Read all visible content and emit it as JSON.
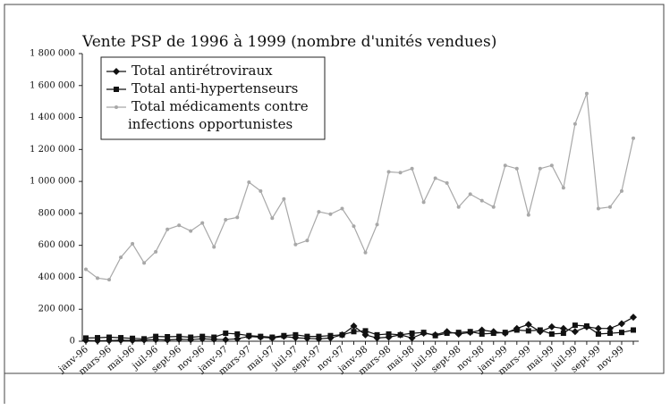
{
  "chart_data": {
    "type": "line",
    "title": "Vente PSP de 1996 à 1999 (nombre d'unités vendues)",
    "categories": [
      "janv-96",
      null,
      "mars-96",
      null,
      "mai-96",
      null,
      "juil-96",
      null,
      "sept-96",
      null,
      "nov-96",
      null,
      "janv-97",
      null,
      "mars-97",
      null,
      "mai-97",
      null,
      "juil-97",
      null,
      "sept-97",
      null,
      "nov-97",
      null,
      "janv-98",
      null,
      "mars-98",
      null,
      "mai-98",
      null,
      "juil-98",
      null,
      "sept-98",
      null,
      "nov-98",
      null,
      "janv-99",
      null,
      "mars-99",
      null,
      "mai-99",
      null,
      "juil-99",
      null,
      "sept-99",
      null,
      "nov-99",
      null
    ],
    "series": [
      {
        "name": "Total antirétroviraux",
        "color": "#111111",
        "marker": "diamond",
        "values": [
          5000,
          3000,
          4000,
          6000,
          5000,
          8000,
          10000,
          8000,
          12000,
          10000,
          15000,
          12000,
          10000,
          15000,
          30000,
          25000,
          20000,
          30000,
          22000,
          18000,
          15000,
          20000,
          40000,
          95000,
          40000,
          20000,
          25000,
          40000,
          20000,
          50000,
          40000,
          60000,
          45000,
          55000,
          70000,
          60000,
          50000,
          80000,
          105000,
          60000,
          90000,
          80000,
          60000,
          90000,
          80000,
          80000,
          110000,
          150000
        ]
      },
      {
        "name": "Total anti-hypertenseurs",
        "color": "#111111",
        "marker": "square",
        "values": [
          20000,
          22000,
          25000,
          22000,
          18000,
          15000,
          30000,
          28000,
          30000,
          25000,
          30000,
          25000,
          50000,
          45000,
          35000,
          30000,
          25000,
          35000,
          40000,
          30000,
          30000,
          35000,
          40000,
          60000,
          65000,
          40000,
          45000,
          40000,
          50000,
          55000,
          35000,
          50000,
          55000,
          60000,
          45000,
          50000,
          55000,
          70000,
          65000,
          70000,
          45000,
          50000,
          100000,
          95000,
          45000,
          50000,
          55000,
          70000
        ]
      },
      {
        "name": "Total médicaments contre infections opportunistes",
        "color": "#a8a8a8",
        "marker": "dot",
        "values": [
          450000,
          395000,
          385000,
          525000,
          610000,
          490000,
          560000,
          700000,
          725000,
          690000,
          740000,
          590000,
          760000,
          775000,
          995000,
          940000,
          770000,
          890000,
          605000,
          630000,
          810000,
          795000,
          830000,
          720000,
          555000,
          730000,
          1060000,
          1055000,
          1080000,
          870000,
          1020000,
          990000,
          840000,
          920000,
          880000,
          840000,
          1100000,
          1080000,
          790000,
          1080000,
          1100000,
          960000,
          1360000,
          1550000,
          830000,
          840000,
          940000,
          1270000
        ]
      }
    ],
    "ylim": [
      0,
      1800000
    ],
    "yticks": [
      0,
      {
        "value": 200000,
        "label": "200 000"
      },
      {
        "value": 400000,
        "label": "400 000"
      },
      {
        "value": 600000,
        "label": "600 000"
      },
      {
        "value": 800000,
        "label": "800 000"
      },
      {
        "value": 1000000,
        "label": "1 000 000"
      },
      {
        "value": 1200000,
        "label": "1 200 000"
      },
      {
        "value": 1400000,
        "label": "1 400 000"
      },
      {
        "value": 1600000,
        "label": "1 600 000"
      },
      {
        "value": 1800000,
        "label": "1 800 000"
      }
    ],
    "legend": "upper-left"
  }
}
